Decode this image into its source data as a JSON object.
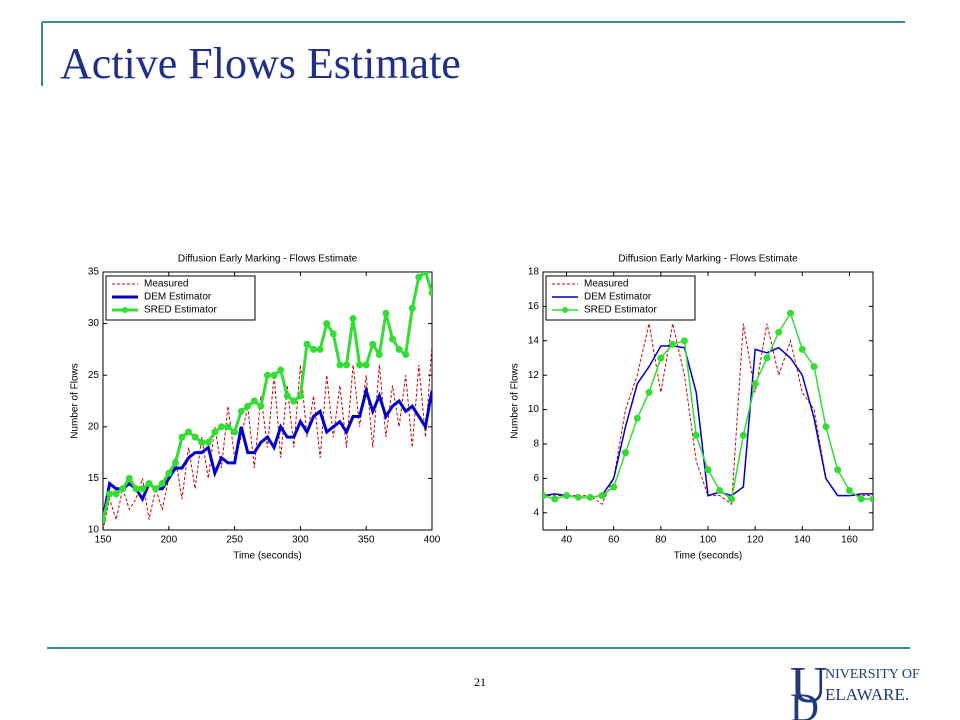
{
  "slide": {
    "title": "Active Flows Estimate",
    "page_number": "21",
    "logo_top": "NIVERSITY OF",
    "logo_bottom": "ELAWARE."
  },
  "chart_data": [
    {
      "type": "line",
      "title": "Diffusion Early Marking - Flows Estimate",
      "x_label": "Time (seconds)",
      "y_label": "Number of Flows",
      "xlim": [
        150,
        400
      ],
      "ylim": [
        10,
        35
      ],
      "xticks": [
        150,
        200,
        250,
        300,
        350,
        400
      ],
      "yticks": [
        10,
        15,
        20,
        25,
        30,
        35
      ],
      "legend": "upper left",
      "linewidth": 3,
      "x": [
        150,
        155,
        160,
        165,
        170,
        175,
        180,
        185,
        190,
        195,
        200,
        205,
        210,
        215,
        220,
        225,
        230,
        235,
        240,
        245,
        250,
        255,
        260,
        265,
        270,
        275,
        280,
        285,
        290,
        295,
        300,
        305,
        310,
        315,
        320,
        325,
        330,
        335,
        340,
        345,
        350,
        355,
        360,
        365,
        370,
        375,
        380,
        385,
        390,
        395,
        400
      ],
      "series": [
        {
          "name": "Measured",
          "color": "#cc0000",
          "style": "dashed",
          "values": [
            10,
            13,
            11,
            14,
            12,
            13,
            15,
            11,
            14,
            12,
            15,
            17,
            13,
            18,
            14,
            19,
            15,
            20,
            16,
            22,
            17,
            19,
            22,
            16,
            23,
            18,
            25,
            17,
            24,
            18,
            26,
            19,
            23,
            17,
            25,
            19,
            24,
            18,
            26,
            20,
            25,
            18,
            26,
            19,
            24,
            20,
            25,
            18,
            26,
            19,
            28
          ]
        },
        {
          "name": "DEM Estimator",
          "color": "#0000cc",
          "style": "solid",
          "values": [
            11,
            14.5,
            14,
            14,
            14.5,
            14,
            13,
            14.5,
            14,
            14,
            15,
            16,
            16,
            17,
            17.5,
            17.5,
            18,
            15.5,
            17,
            16.5,
            16.5,
            20,
            17.5,
            17.5,
            18.5,
            19,
            18,
            20,
            19,
            19,
            20.5,
            19.5,
            21,
            21.5,
            19.5,
            20,
            20.5,
            19.5,
            21,
            21,
            23.5,
            21.5,
            23,
            21,
            22,
            22.5,
            21.5,
            22,
            21,
            20,
            23.5
          ]
        },
        {
          "name": "SRED Estimator",
          "color": "#33dd33",
          "style": "solid",
          "marker": "circle",
          "values": [
            11,
            13.5,
            13.5,
            14,
            15,
            14,
            14,
            14.5,
            14,
            14.5,
            15.5,
            16.5,
            19,
            19.5,
            19,
            18.5,
            18.5,
            19.5,
            20,
            20,
            19.5,
            21.5,
            22,
            22.5,
            22,
            25,
            25,
            25.5,
            23,
            22.5,
            23,
            28,
            27.5,
            27.5,
            30,
            29,
            26,
            26,
            30.5,
            26,
            26,
            28,
            27,
            31,
            28.5,
            27.5,
            27,
            31.5,
            34.5,
            35,
            33
          ]
        }
      ]
    },
    {
      "type": "line",
      "title": "Diffusion Early Marking - Flows Estimate",
      "x_label": "Time (seconds)",
      "y_label": "Number of Flows",
      "xlim": [
        30,
        170
      ],
      "ylim": [
        3,
        18
      ],
      "xticks": [
        40,
        60,
        80,
        100,
        120,
        140,
        160
      ],
      "yticks": [
        4,
        6,
        8,
        10,
        12,
        14,
        16,
        18
      ],
      "legend": "upper left",
      "linewidth": 1.5,
      "x": [
        30,
        35,
        40,
        45,
        50,
        55,
        60,
        65,
        70,
        75,
        80,
        85,
        90,
        95,
        100,
        105,
        110,
        115,
        120,
        125,
        130,
        135,
        140,
        145,
        150,
        155,
        160,
        165,
        170
      ],
      "series": [
        {
          "name": "Measured",
          "color": "#cc0000",
          "style": "dashed",
          "values": [
            5,
            5,
            5,
            5,
            5,
            4.5,
            6,
            10,
            12,
            15,
            11,
            15,
            12,
            7,
            5,
            5,
            4.5,
            15,
            11,
            15,
            12,
            14,
            11,
            10,
            6,
            5,
            5,
            5,
            5
          ]
        },
        {
          "name": "DEM Estimator",
          "color": "#0000cc",
          "style": "solid",
          "values": [
            5,
            5.1,
            5,
            4.9,
            4.9,
            5,
            6,
            9,
            11.5,
            12.5,
            13.7,
            13.7,
            13.6,
            11,
            5,
            5.2,
            5,
            5.5,
            13.5,
            13.3,
            13.6,
            13,
            12,
            9.5,
            6,
            5,
            5,
            5.1,
            5.1
          ]
        },
        {
          "name": "SRED Estimator",
          "color": "#33dd33",
          "style": "solid",
          "marker": "circle",
          "values": [
            5,
            4.8,
            5,
            4.9,
            4.9,
            5,
            5.5,
            7.5,
            9.5,
            11,
            13,
            13.8,
            14,
            8.5,
            6.5,
            5.3,
            4.8,
            8.5,
            11.5,
            13,
            14.5,
            15.6,
            13.5,
            12.5,
            9,
            6.5,
            5.3,
            4.8,
            4.8
          ]
        }
      ]
    }
  ]
}
